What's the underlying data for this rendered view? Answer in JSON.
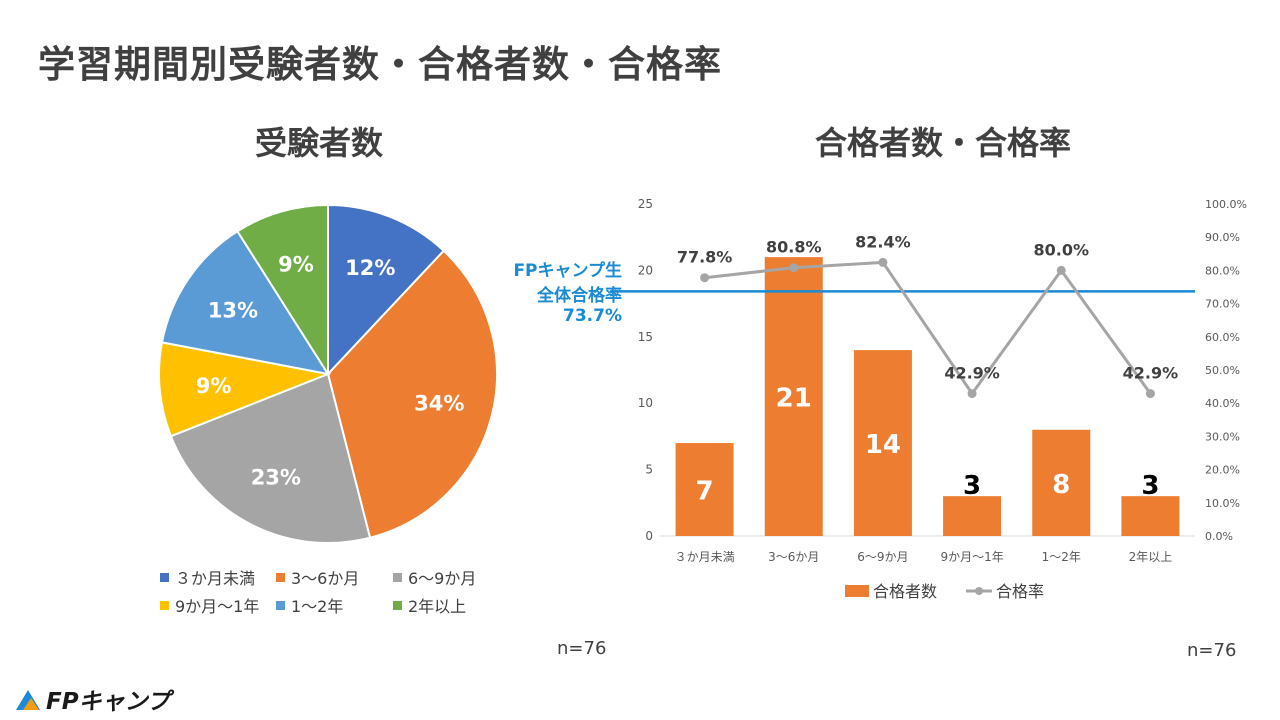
{
  "page_title": "学習期間別受験者数・合格者数・合格率",
  "colors": {
    "blue": "#4472c4",
    "orange": "#ed7d31",
    "gray": "#a5a5a5",
    "yellow": "#ffc000",
    "lightblue": "#5b9bd5",
    "green": "#70ad47",
    "refline": "#1a8ad4",
    "text": "#404040"
  },
  "pie_n": "n=76",
  "combo_n": "n=76",
  "reference": {
    "line1": "FPキャンプ生",
    "line2": "全体合格率",
    "line3": "73.7%",
    "value": 73.7
  },
  "logo_text": "FPキャンプ",
  "chart_data": [
    {
      "type": "pie",
      "title": "受験者数",
      "categories": [
        "３か月未満",
        "3～6か月",
        "6～9か月",
        "9か月～1年",
        "1～2年",
        "2年以上"
      ],
      "values": [
        12,
        34,
        23,
        9,
        13,
        9
      ],
      "labels": [
        "12%",
        "34%",
        "23%",
        "9%",
        "13%",
        "9%"
      ],
      "legend_position": "bottom"
    },
    {
      "type": "bar+line",
      "title": "合格者数・合格率",
      "categories": [
        "３か月未満",
        "3～6か月",
        "6～9か月",
        "9か月～1年",
        "1～2年",
        "2年以上"
      ],
      "series": [
        {
          "name": "合格者数",
          "type": "bar",
          "axis": "left",
          "values": [
            7,
            21,
            14,
            3,
            8,
            3
          ]
        },
        {
          "name": "合格率",
          "type": "line",
          "axis": "right",
          "values": [
            77.8,
            80.8,
            82.4,
            42.9,
            80.0,
            42.9
          ],
          "labels": [
            "77.8%",
            "80.8%",
            "82.4%",
            "42.9%",
            "80.0%",
            "42.9%"
          ]
        }
      ],
      "ylim_left": [
        0,
        25
      ],
      "yticks_left": [
        "0",
        "5",
        "10",
        "15",
        "20",
        "25"
      ],
      "ylim_right": [
        0,
        100
      ],
      "yticks_right": [
        "0.0%",
        "10.0%",
        "20.0%",
        "30.0%",
        "40.0%",
        "50.0%",
        "60.0%",
        "70.0%",
        "80.0%",
        "90.0%",
        "100.0%"
      ],
      "legend_position": "bottom"
    }
  ]
}
